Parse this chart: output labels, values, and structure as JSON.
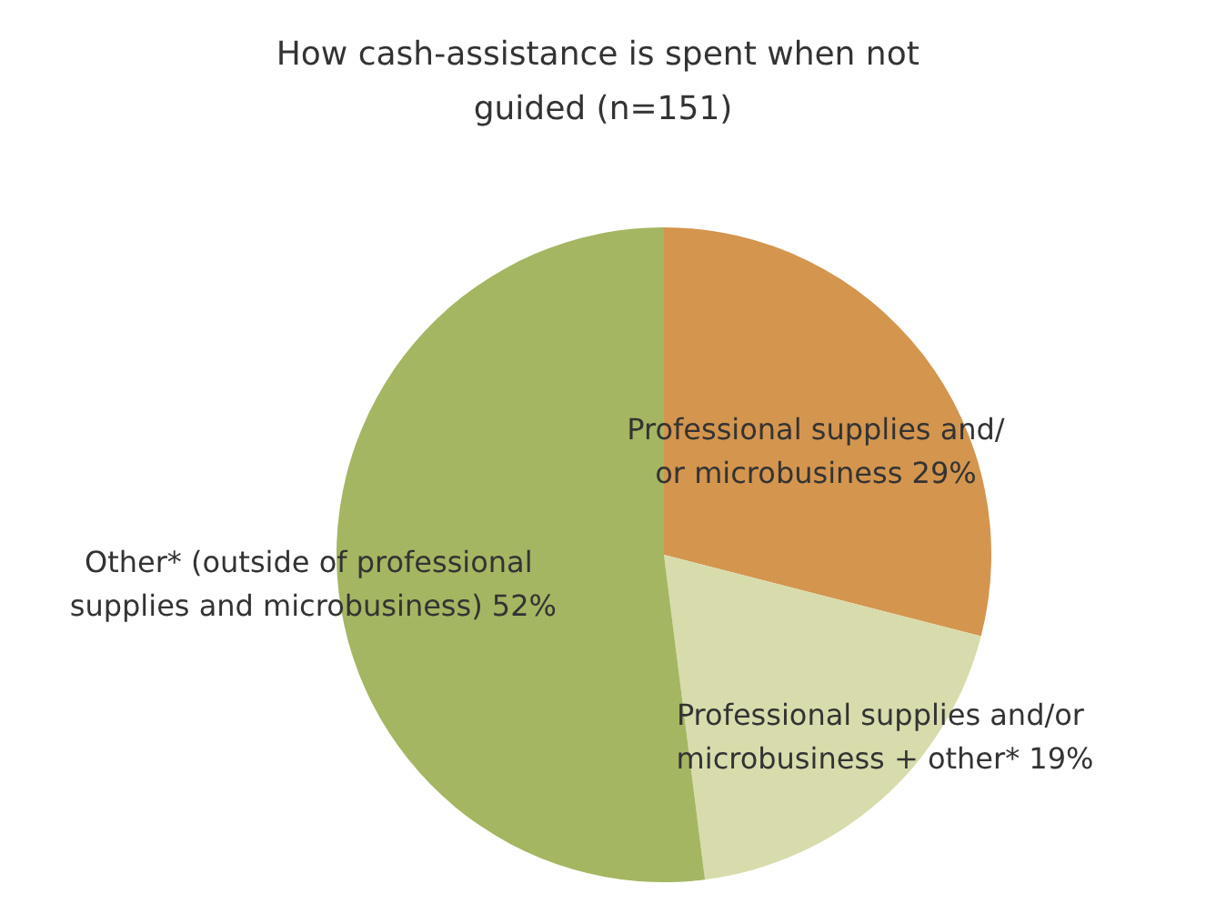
{
  "chart_data": {
    "type": "pie",
    "title": "How cash-assistance is spent when not guided (n=151)",
    "categories": [
      "Professional supplies and/or microbusiness",
      "Professional supplies and/or microbusiness + other*",
      "Other* (outside of professional supplies and microbusiness)"
    ],
    "values": [
      29,
      19,
      52
    ],
    "colors": [
      "#d4954e",
      "#d8dcac",
      "#a4b662"
    ],
    "value_labels": [
      "29%",
      "19%",
      "52%"
    ],
    "legend": false
  }
}
